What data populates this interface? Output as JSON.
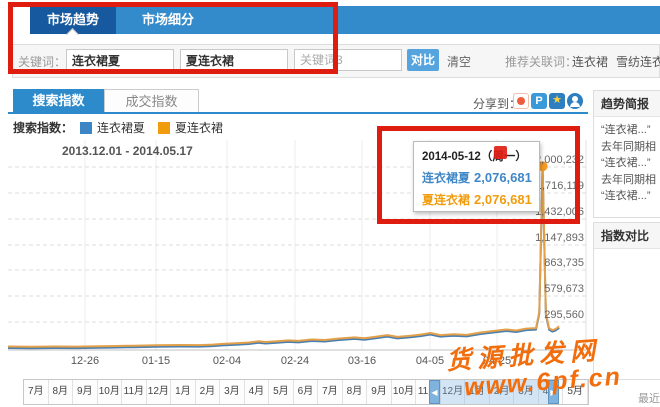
{
  "header": {
    "tabs": [
      {
        "label": "市场趋势"
      },
      {
        "label": "市场细分"
      }
    ],
    "keywords": {
      "label": "关键词：",
      "input1": "连衣裙夏",
      "input2": "夏连衣裙",
      "input3_placeholder": "关键词3",
      "compare": "对比",
      "clear": "清空",
      "suggest_label": "推荐关联词：",
      "suggest_links": [
        "连衣裙",
        "雪纺连衣.."
      ]
    }
  },
  "toolbar": {
    "tabs": [
      {
        "label": "搜索指数"
      },
      {
        "label": "成交指数"
      }
    ],
    "share_label": "分享到：",
    "share_icons": [
      "weibo-icon",
      "pengyou-icon",
      "qzone-icon",
      "renren-icon"
    ]
  },
  "legend": {
    "label": "搜索指数：",
    "series": [
      {
        "name": "连衣裙夏",
        "color": "#3c86c5"
      },
      {
        "name": "夏连衣裙",
        "color": "#f09c0d"
      }
    ]
  },
  "chart": {
    "date_range": "2013.12.01 - 2014.05.17",
    "y_labels": [
      "2,000,232",
      "1,716,119",
      "1,432,006",
      "1,147,893",
      "863,735",
      "579,673",
      "295,560"
    ],
    "x_labels": [
      "12-26",
      "01-15",
      "02-04",
      "02-24",
      "03-16",
      "04-05",
      "04-25"
    ],
    "tooltip": {
      "date": "2014-05-12（周一）",
      "rows": [
        {
          "name": "连衣裙夏",
          "value": "2,076,681",
          "color": "#3f87c6"
        },
        {
          "name": "夏连衣裙",
          "value": "2,076,681",
          "color": "#f09c0d"
        }
      ]
    }
  },
  "chart_data": {
    "type": "line",
    "title": "搜索指数",
    "x_range": [
      "2013-12-01",
      "2014-05-17"
    ],
    "y_axis_ticks": [
      295560,
      579673,
      863735,
      1147893,
      1432006,
      1716119,
      2000232
    ],
    "series": [
      {
        "name": "连衣裙夏",
        "color": "#3c86c5"
      },
      {
        "name": "夏连衣裙",
        "color": "#f09c0d"
      }
    ],
    "note": "both series share identical values (points below)",
    "points": [
      [
        "2013-12-01",
        28000
      ],
      [
        "2013-12-08",
        26000
      ],
      [
        "2013-12-15",
        28000
      ],
      [
        "2013-12-22",
        27000
      ],
      [
        "2013-12-26",
        30000
      ],
      [
        "2014-01-01",
        33000
      ],
      [
        "2014-01-08",
        38000
      ],
      [
        "2014-01-15",
        43000
      ],
      [
        "2014-01-22",
        46000
      ],
      [
        "2014-01-28",
        44000
      ],
      [
        "2014-02-01",
        50000
      ],
      [
        "2014-02-04",
        58000
      ],
      [
        "2014-02-08",
        66000
      ],
      [
        "2014-02-12",
        74000
      ],
      [
        "2014-02-15",
        88000
      ],
      [
        "2014-02-17",
        80000
      ],
      [
        "2014-02-20",
        86000
      ],
      [
        "2014-02-24",
        98000
      ],
      [
        "2014-02-27",
        92000
      ],
      [
        "2014-03-03",
        108000
      ],
      [
        "2014-03-07",
        102000
      ],
      [
        "2014-03-11",
        118000
      ],
      [
        "2014-03-16",
        132000
      ],
      [
        "2014-03-19",
        122000
      ],
      [
        "2014-03-23",
        142000
      ],
      [
        "2014-03-26",
        158000
      ],
      [
        "2014-03-29",
        138000
      ],
      [
        "2014-04-02",
        150000
      ],
      [
        "2014-04-05",
        164000
      ],
      [
        "2014-04-08",
        182000
      ],
      [
        "2014-04-11",
        158000
      ],
      [
        "2014-04-15",
        168000
      ],
      [
        "2014-04-19",
        160000
      ],
      [
        "2014-04-23",
        186000
      ],
      [
        "2014-04-27",
        205000
      ],
      [
        "2014-05-01",
        222000
      ],
      [
        "2014-05-04",
        210000
      ],
      [
        "2014-05-07",
        232000
      ],
      [
        "2014-05-10",
        238000
      ],
      [
        "2014-05-11",
        420000
      ],
      [
        "2014-05-12",
        2076681
      ],
      [
        "2014-05-13",
        400000
      ],
      [
        "2014-05-14",
        235000
      ],
      [
        "2014-05-15",
        215000
      ],
      [
        "2014-05-16",
        228000
      ],
      [
        "2014-05-17",
        258000
      ]
    ],
    "highlight": {
      "date": "2014-05-12",
      "value": 2076681
    }
  },
  "sidebar": {
    "brief_title": "趋势简报",
    "brief_lines": [
      "“连衣裙...”",
      "去年同期相",
      "“连衣裙...”",
      "去年同期相",
      "“连衣裙...”"
    ],
    "compare_title": "指数对比",
    "footer_note": "最近"
  },
  "slider": {
    "months": [
      "7月",
      "8月",
      "9月",
      "10月",
      "11月",
      "12月",
      "1月",
      "2月",
      "3月",
      "4月",
      "5月",
      "6月",
      "7月",
      "8月",
      "9月",
      "10月",
      "11月",
      "12月",
      "1月",
      "2月",
      "3月",
      "4月",
      "5月"
    ]
  },
  "watermark": {
    "line1": "货源批发网",
    "line2": "www.6pf.cn"
  }
}
